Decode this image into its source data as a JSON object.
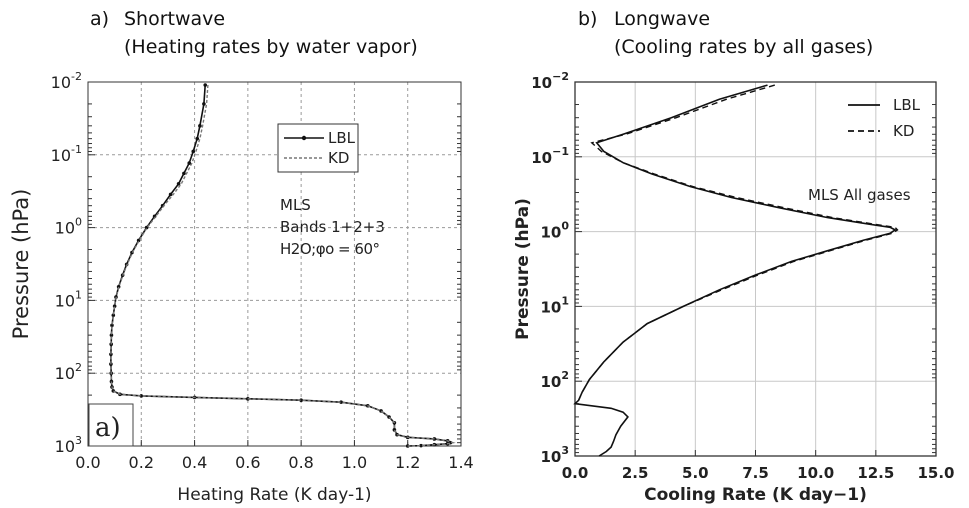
{
  "headings": {
    "a_label": "a)",
    "a_title": "Shortwave",
    "a_subtitle": "(Heating rates by water vapor)",
    "b_label": "b)",
    "b_title": "Longwave",
    "b_subtitle": "(Cooling rates by all gases)"
  },
  "chart_data": [
    {
      "type": "line",
      "title": "Shortwave",
      "subtitle": "(Heating rates by water vapor)",
      "xlabel": "Heating Rate (K day-1)",
      "ylabel": "Pressure (hPa)",
      "xlim": [
        0.0,
        1.4
      ],
      "xticks": [
        "0.0",
        "0.2",
        "0.4",
        "0.6",
        "0.8",
        "1.0",
        "1.2",
        "1.4"
      ],
      "ylim": [
        1000,
        0.01
      ],
      "yscale": "log",
      "yticks": [
        {
          "base": "10",
          "exp": "-2"
        },
        {
          "base": "10",
          "exp": "-1"
        },
        {
          "base": "10",
          "exp": "0"
        },
        {
          "base": "10",
          "exp": "1"
        },
        {
          "base": "10",
          "exp": "2"
        },
        {
          "base": "10",
          "exp": "3"
        }
      ],
      "grid": true,
      "legend_position": "upper-right",
      "legend": [
        {
          "name": "LBL",
          "style": "solid with dots"
        },
        {
          "name": "KD",
          "style": "dashed"
        }
      ],
      "annotations": {
        "line1": "MLS",
        "line2": "Bands 1+2+3",
        "line3": "H2O;φo = 60°"
      },
      "panel_label": "a)",
      "series": [
        {
          "name": "LBL",
          "x": [
            0.44,
            0.435,
            0.42,
            0.41,
            0.395,
            0.38,
            0.36,
            0.34,
            0.31,
            0.28,
            0.25,
            0.22,
            0.19,
            0.165,
            0.145,
            0.13,
            0.115,
            0.105,
            0.1,
            0.095,
            0.09,
            0.088,
            0.087,
            0.086,
            0.086,
            0.087,
            0.088,
            0.09,
            0.095,
            0.12,
            0.2,
            0.4,
            0.6,
            0.8,
            0.95,
            1.05,
            1.1,
            1.13,
            1.15,
            1.15,
            1.16,
            1.2,
            1.3,
            1.35,
            1.36,
            1.35,
            1.3,
            1.25,
            1.2
          ],
          "y": [
            0.011,
            0.02,
            0.04,
            0.06,
            0.09,
            0.13,
            0.18,
            0.25,
            0.35,
            0.5,
            0.7,
            1.0,
            1.5,
            2.2,
            3.2,
            4.5,
            6.5,
            9.0,
            12,
            16,
            22,
            30,
            40,
            55,
            75,
            100,
            130,
            155,
            175,
            195,
            205,
            215,
            225,
            235,
            250,
            280,
            330,
            400,
            480,
            600,
            700,
            760,
            800,
            850,
            900,
            930,
            960,
            990,
            1000
          ]
        },
        {
          "name": "KD",
          "x": [
            0.45,
            0.445,
            0.43,
            0.42,
            0.405,
            0.39,
            0.37,
            0.35,
            0.32,
            0.285,
            0.255,
            0.222,
            0.192,
            0.167,
            0.147,
            0.131,
            0.116,
            0.106,
            0.1,
            0.095,
            0.09,
            0.088,
            0.087,
            0.086,
            0.086,
            0.087,
            0.088,
            0.09,
            0.095,
            0.12,
            0.2,
            0.4,
            0.6,
            0.8,
            0.95,
            1.05,
            1.1,
            1.13,
            1.15,
            1.15,
            1.16,
            1.2,
            1.3,
            1.35,
            1.37,
            1.35,
            1.3,
            1.25,
            1.2
          ],
          "y": [
            0.011,
            0.02,
            0.04,
            0.06,
            0.09,
            0.13,
            0.18,
            0.25,
            0.35,
            0.5,
            0.7,
            1.0,
            1.5,
            2.2,
            3.2,
            4.5,
            6.5,
            9.0,
            12,
            16,
            22,
            30,
            40,
            55,
            75,
            100,
            130,
            155,
            175,
            195,
            205,
            215,
            225,
            235,
            250,
            280,
            330,
            400,
            480,
            600,
            700,
            760,
            800,
            850,
            900,
            930,
            960,
            990,
            1000
          ]
        }
      ]
    },
    {
      "type": "line",
      "title": "Longwave",
      "subtitle": "(Cooling rates by all gases)",
      "xlabel": "Cooling Rate (K day−1)",
      "ylabel": "Pressure (hPa)",
      "xlim": [
        0.0,
        15.0
      ],
      "xticks": [
        "0.0",
        "2.5",
        "5.0",
        "7.5",
        "10.0",
        "12.5",
        "15.0"
      ],
      "ylim": [
        1000,
        0.01
      ],
      "yscale": "log",
      "yticks": [
        {
          "base": "10",
          "exp": "−2"
        },
        {
          "base": "10",
          "exp": "−1"
        },
        {
          "base": "10",
          "exp": "0"
        },
        {
          "base": "10",
          "exp": "1"
        },
        {
          "base": "10",
          "exp": "2"
        },
        {
          "base": "10",
          "exp": "3"
        }
      ],
      "grid": true,
      "legend_position": "upper-right",
      "legend": [
        {
          "name": "LBL",
          "style": "solid"
        },
        {
          "name": "KD",
          "style": "dashed"
        }
      ],
      "annotations": {
        "line1": "MLS  All gases"
      },
      "series": [
        {
          "name": "LBL",
          "x": [
            8.0,
            6.0,
            4.0,
            2.0,
            0.9,
            1.2,
            2.0,
            3.2,
            4.8,
            6.5,
            8.5,
            10.5,
            12.3,
            13.1,
            13.3,
            13.1,
            12.0,
            10.5,
            9.0,
            7.5,
            6.0,
            4.5,
            3.0,
            2.0,
            1.2,
            0.6,
            0.3,
            0.15,
            0.0,
            1.5,
            2.0,
            2.2,
            1.9,
            1.7,
            1.6,
            1.5,
            1.3,
            1.0
          ],
          "y": [
            0.011,
            0.017,
            0.03,
            0.05,
            0.065,
            0.085,
            0.12,
            0.17,
            0.25,
            0.35,
            0.48,
            0.65,
            0.8,
            0.88,
            0.95,
            1.05,
            1.3,
            1.8,
            2.5,
            3.8,
            6,
            10,
            17,
            30,
            55,
            95,
            140,
            180,
            200,
            230,
            260,
            300,
            400,
            520,
            640,
            760,
            870,
            1000
          ]
        },
        {
          "name": "KD",
          "x": [
            8.3,
            6.3,
            4.2,
            2.1,
            0.7,
            1.1,
            2.0,
            3.3,
            4.9,
            6.7,
            8.7,
            10.7,
            12.5,
            13.3,
            13.4,
            13.2,
            12.1,
            10.6,
            9.1,
            7.6,
            6.1,
            4.5,
            3.0,
            2.0,
            1.2,
            0.6,
            0.3,
            0.15
          ],
          "y": [
            0.011,
            0.017,
            0.03,
            0.05,
            0.065,
            0.085,
            0.12,
            0.17,
            0.25,
            0.35,
            0.48,
            0.65,
            0.8,
            0.88,
            0.95,
            1.05,
            1.3,
            1.8,
            2.5,
            3.8,
            6,
            10,
            17,
            30,
            55,
            95,
            140,
            180
          ]
        }
      ]
    }
  ]
}
